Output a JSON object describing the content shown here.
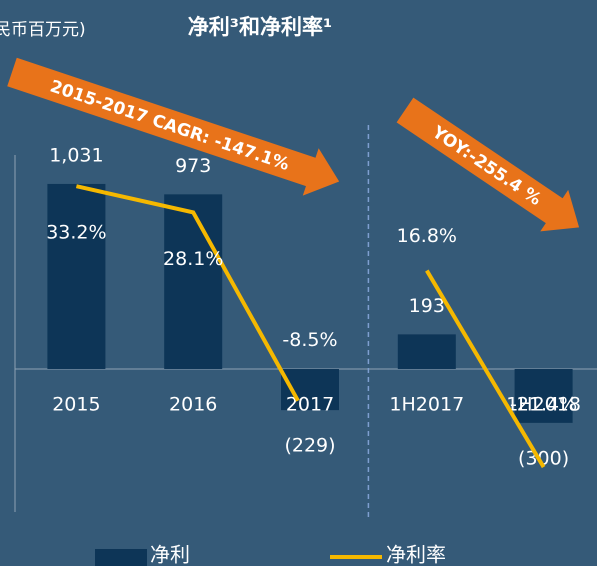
{
  "chart_data": {
    "type": "bar-line",
    "title": "净利³和净利率¹",
    "unit_label": "民币百万元)",
    "categories": [
      "2015",
      "2016",
      "2017",
      "1H2017",
      "1H2018"
    ],
    "series": [
      {
        "name": "净利",
        "type": "bar",
        "color": "#0d3557",
        "values": [
          1031,
          973,
          -229,
          193,
          -300
        ],
        "value_labels": [
          "1,031",
          "973",
          "(229)",
          "193",
          "(300)"
        ]
      },
      {
        "name": "净利率",
        "type": "line",
        "axis": "y2",
        "color": "#f5b800",
        "values": [
          33.2,
          28.1,
          -8.5,
          16.8,
          -21.4
        ],
        "value_labels": [
          "33.2%",
          "28.1%",
          "-8.5%",
          "16.8%",
          "-21.4%"
        ]
      }
    ],
    "divider_after": 2,
    "annotations": [
      "2015-2017 CAGR:  -147.1%",
      "YOY:-255.4  %"
    ],
    "annotation_color": "#e8731a",
    "ylim": [
      -850,
      1500
    ],
    "y2lim": [
      -32,
      50
    ]
  }
}
